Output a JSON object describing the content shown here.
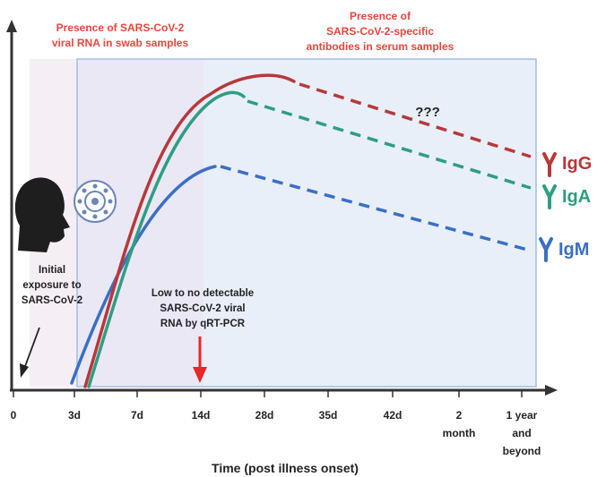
{
  "annotations": {
    "swab_line1": "Presence of SARS-CoV-2",
    "swab_line2": "viral RNA in swab samples",
    "serum_line1": "Presence of",
    "serum_line2": "SARS-CoV-2-specific",
    "serum_line3": "antibodies in serum samples",
    "unknown": "???",
    "exposure_line1": "Initial",
    "exposure_line2": "exposure to",
    "exposure_line3": "SARS-CoV-2",
    "rna_line1": "Low to no detectable",
    "rna_line2": "SARS-CoV-2 viral",
    "rna_line3": "RNA by qRT-PCR"
  },
  "xaxis": {
    "title": "Time (post illness onset)",
    "ticks": [
      {
        "lines": [
          "0"
        ]
      },
      {
        "lines": [
          "3d"
        ]
      },
      {
        "lines": [
          "7d"
        ]
      },
      {
        "lines": [
          "14d"
        ]
      },
      {
        "lines": [
          "28d"
        ]
      },
      {
        "lines": [
          "35d"
        ]
      },
      {
        "lines": [
          "42d"
        ]
      },
      {
        "lines": [
          "2",
          "month"
        ]
      },
      {
        "lines": [
          "1 year",
          "and",
          "beyond"
        ]
      }
    ]
  },
  "antibodies": [
    {
      "name": "IgG",
      "color": "#b8383a"
    },
    {
      "name": "IgA",
      "color": "#2e9e82"
    },
    {
      "name": "IgM",
      "color": "#3a6fc4"
    }
  ],
  "colors": {
    "swab_region": "#f6eef5",
    "serum_region": "#e8eff9",
    "serum_border": "#9fbde6",
    "arrow_red": "#e8272b",
    "annotation_red": "#e8453c",
    "axis": "#333333"
  },
  "icons": {
    "head": "human-head-silhouette-icon",
    "virus": "coronavirus-icon",
    "antibody": "antibody-y-icon"
  }
}
